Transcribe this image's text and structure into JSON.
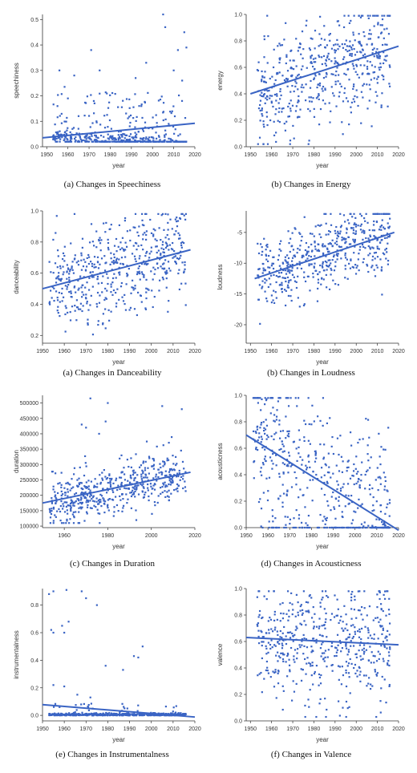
{
  "panels": [
    {
      "caption": "(a) Changes in Speechiness",
      "chart_data": {
        "type": "scatter",
        "xlabel": "year",
        "ylabel": "speechiness",
        "xlim": [
          1948,
          2020
        ],
        "ylim": [
          0,
          0.52
        ],
        "xticks": [
          "1950",
          "1960",
          "1970",
          "1980",
          "1990",
          "2000",
          "2010",
          "2020"
        ],
        "yticks": [
          "0.0",
          "0.1",
          "0.2",
          "0.3",
          "0.4",
          "0.5"
        ],
        "trend": {
          "x": [
            1948,
            2020
          ],
          "y": [
            0.035,
            0.092
          ]
        },
        "highlights": [
          [
            1956,
            0.3
          ],
          [
            1963,
            0.28
          ],
          [
            1971,
            0.38
          ],
          [
            1975,
            0.3
          ],
          [
            1997,
            0.33
          ],
          [
            2005,
            0.52
          ],
          [
            2006,
            0.47
          ],
          [
            2012,
            0.38
          ],
          [
            2015,
            0.45
          ],
          [
            2016,
            0.39
          ],
          [
            2010,
            0.3
          ],
          [
            1960,
            0.19
          ],
          [
            1992,
            0.27
          ],
          [
            2014,
            0.26
          ]
        ],
        "distribution": {
          "n": 520,
          "seed": 11,
          "base": [
            0.04,
            -0.0
          ],
          "spread": 0.018,
          "tail": 0.22,
          "tailmax": 0.2,
          "clip": [
            0.02,
            0.5
          ]
        }
      }
    },
    {
      "caption": "(b) Changes in Energy",
      "chart_data": {
        "type": "scatter",
        "xlabel": "year",
        "ylabel": "energy",
        "xlim": [
          1948,
          2020
        ],
        "ylim": [
          0,
          1.0
        ],
        "xticks": [
          "1950",
          "1960",
          "1970",
          "1980",
          "1990",
          "2000",
          "2010",
          "2020"
        ],
        "yticks": [
          "0.0",
          "0.2",
          "0.4",
          "0.6",
          "0.8",
          "1.0"
        ],
        "trend": {
          "x": [
            1950,
            2020
          ],
          "y": [
            0.4,
            0.76
          ]
        },
        "distribution": {
          "n": 520,
          "seed": 23,
          "base": [
            0.4,
            0.76
          ],
          "spread": 0.2,
          "tail": 0,
          "tailmax": 0,
          "clip": [
            0.02,
            0.99
          ]
        }
      }
    },
    {
      "caption": "(a) Changes in Danceability",
      "chart_data": {
        "type": "scatter",
        "xlabel": "year",
        "ylabel": "danceability",
        "xlim": [
          1950,
          2020
        ],
        "ylim": [
          0.15,
          1.0
        ],
        "xticks": [
          "1950",
          "1960",
          "1970",
          "1980",
          "1990",
          "2000",
          "2010",
          "2020"
        ],
        "yticks": [
          "0.2",
          "0.4",
          "0.6",
          "0.8",
          "1.0"
        ],
        "trend": {
          "x": [
            1950,
            2018
          ],
          "y": [
            0.5,
            0.75
          ]
        },
        "distribution": {
          "n": 520,
          "seed": 37,
          "base": [
            0.5,
            0.75
          ],
          "spread": 0.15,
          "tail": 0,
          "tailmax": 0,
          "clip": [
            0.18,
            0.98
          ]
        }
      }
    },
    {
      "caption": "(b) Changes in Loudness",
      "chart_data": {
        "type": "scatter",
        "xlabel": "year",
        "ylabel": "loudness",
        "xlim": [
          1948,
          2020
        ],
        "ylim": [
          -23,
          -1.5
        ],
        "xticks": [
          "1950",
          "1960",
          "1970",
          "1980",
          "1990",
          "2000",
          "2010",
          "2020"
        ],
        "yticks": [
          "-20",
          "-15",
          "-10",
          "-5"
        ],
        "trend": {
          "x": [
            1952,
            2018
          ],
          "y": [
            -12.5,
            -5
          ]
        },
        "distribution": {
          "n": 520,
          "seed": 41,
          "base": [
            -12.5,
            -5
          ],
          "spread": 3.0,
          "tail": 0,
          "tailmax": 0,
          "clip": [
            -22.5,
            -2
          ]
        }
      }
    },
    {
      "caption": "(c) Changes in Duration",
      "chart_data": {
        "type": "scatter",
        "xlabel": "year",
        "ylabel": "duration",
        "xlim": [
          1950,
          2020
        ],
        "ylim": [
          95000,
          525000
        ],
        "xticks": [
          "1960",
          "1980",
          "2000",
          "2020"
        ],
        "yticks": [
          "100000",
          "150000",
          "200000",
          "250000",
          "300000",
          "350000",
          "400000",
          "450000",
          "500000"
        ],
        "trend": {
          "x": [
            1950,
            2018
          ],
          "y": [
            175000,
            275000
          ]
        },
        "highlights": [
          [
            1972,
            515000
          ],
          [
            1980,
            500000
          ],
          [
            2005,
            490000
          ],
          [
            2014,
            480000
          ],
          [
            1968,
            430000
          ],
          [
            1970,
            420000
          ],
          [
            1976,
            400000
          ],
          [
            1979,
            440000
          ]
        ],
        "distribution": {
          "n": 520,
          "seed": 53,
          "base": [
            170000,
            270000
          ],
          "spread": 40000,
          "tail": 0.03,
          "tailmax": 150000,
          "clip": [
            110000,
            515000
          ]
        }
      }
    },
    {
      "caption": "(d) Changes in Acousticness",
      "chart_data": {
        "type": "scatter",
        "xlabel": "year",
        "ylabel": "acousticness",
        "xlim": [
          1950,
          2020
        ],
        "ylim": [
          0,
          1.0
        ],
        "xticks": [
          "1950",
          "1960",
          "1970",
          "1980",
          "1990",
          "2000",
          "2010",
          "2020"
        ],
        "yticks": [
          "0.0",
          "0.2",
          "0.4",
          "0.6",
          "0.8",
          "1.0"
        ],
        "trend": {
          "x": [
            1950,
            2020
          ],
          "y": [
            0.7,
            -0.02
          ]
        },
        "distribution": {
          "n": 520,
          "seed": 67,
          "base": [
            0.75,
            0.05
          ],
          "spread": 0.28,
          "tail": 0,
          "tailmax": 0,
          "clip": [
            0.0,
            0.98
          ],
          "floor": 0.45
        }
      }
    },
    {
      "caption": "(e) Changes in Instrumentalness",
      "chart_data": {
        "type": "scatter",
        "xlabel": "year",
        "ylabel": "instrumentalness",
        "xlim": [
          1950,
          2020
        ],
        "ylim": [
          -0.04,
          0.92
        ],
        "xticks": [
          "1950",
          "1960",
          "1970",
          "1980",
          "1990",
          "2000",
          "2010",
          "2020"
        ],
        "yticks": [
          "0.0",
          "0.2",
          "0.4",
          "0.6",
          "0.8"
        ],
        "trend": {
          "x": [
            1950,
            2020
          ],
          "y": [
            0.078,
            -0.012
          ]
        },
        "highlights": [
          [
            1953,
            0.88
          ],
          [
            1955,
            0.9
          ],
          [
            1961,
            0.91
          ],
          [
            1968,
            0.9
          ],
          [
            1970,
            0.85
          ],
          [
            1975,
            0.8
          ],
          [
            1955,
            0.6
          ],
          [
            1959,
            0.65
          ],
          [
            1962,
            0.68
          ],
          [
            1954,
            0.62
          ],
          [
            1960,
            0.6
          ],
          [
            1979,
            0.36
          ],
          [
            1987,
            0.33
          ],
          [
            1992,
            0.43
          ],
          [
            1994,
            0.42
          ],
          [
            1996,
            0.5
          ],
          [
            1955,
            0.22
          ],
          [
            1960,
            0.21
          ],
          [
            1966,
            0.15
          ],
          [
            1972,
            0.13
          ]
        ],
        "distribution": {
          "n": 520,
          "seed": 79,
          "base": [
            0.005,
            0.005
          ],
          "spread": 0.005,
          "tail": 0.08,
          "tailmax": 0.08,
          "clip": [
            0.0,
            0.9
          ]
        }
      }
    },
    {
      "caption": "(f) Changes in Valence",
      "chart_data": {
        "type": "scatter",
        "xlabel": "year",
        "ylabel": "valence",
        "xlim": [
          1948,
          2020
        ],
        "ylim": [
          0,
          1.0
        ],
        "xticks": [
          "1950",
          "1960",
          "1970",
          "1980",
          "1990",
          "2000",
          "2010",
          "2020"
        ],
        "yticks": [
          "0.0",
          "0.2",
          "0.4",
          "0.6",
          "0.8",
          "1.0"
        ],
        "trend": {
          "x": [
            1948,
            2020
          ],
          "y": [
            0.63,
            0.575
          ]
        },
        "distribution": {
          "n": 520,
          "seed": 97,
          "base": [
            0.6,
            0.57
          ],
          "spread": 0.24,
          "tail": 0,
          "tailmax": 0,
          "clip": [
            0.03,
            0.98
          ]
        }
      }
    }
  ],
  "colors": {
    "accent": "#3a64c4",
    "axis": "#333333"
  }
}
